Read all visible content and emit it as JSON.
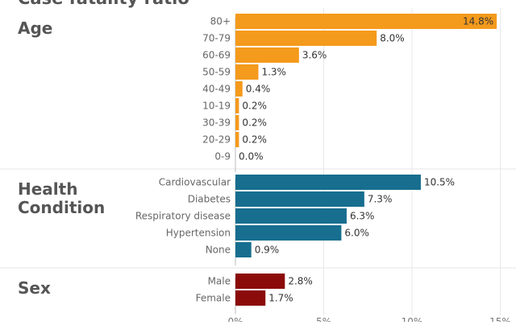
{
  "title": "Case fatality ratio",
  "chart_data": {
    "type": "bar",
    "orientation": "horizontal",
    "value_format": "percent",
    "xlim": [
      0,
      15
    ],
    "x_ticks": [
      "0%",
      "5%",
      "10%",
      "15%"
    ],
    "groups": [
      {
        "label": "Age",
        "color": "#f49a1c",
        "categories": [
          "80+",
          "70-79",
          "60-69",
          "50-59",
          "40-49",
          "10-19",
          "30-39",
          "20-29",
          "0-9"
        ],
        "values": [
          14.8,
          8.0,
          3.6,
          1.3,
          0.4,
          0.2,
          0.2,
          0.2,
          0.0
        ],
        "value_labels": [
          "14.8%",
          "8.0%",
          "3.6%",
          "1.3%",
          "0.4%",
          "0.2%",
          "0.2%",
          "0.2%",
          "0.0%"
        ]
      },
      {
        "label": "Health Condition",
        "label_lines": [
          "Health",
          "Condition"
        ],
        "color": "#176e8f",
        "categories": [
          "Cardiovascular",
          "Diabetes",
          "Respiratory disease",
          "Hypertension",
          "None"
        ],
        "values": [
          10.5,
          7.3,
          6.3,
          6.0,
          0.9
        ],
        "value_labels": [
          "10.5%",
          "7.3%",
          "6.3%",
          "6.0%",
          "0.9%"
        ]
      },
      {
        "label": "Sex",
        "color": "#8b0b0b",
        "categories": [
          "Male",
          "Female"
        ],
        "values": [
          2.8,
          1.7
        ],
        "value_labels": [
          "2.8%",
          "1.7%"
        ]
      }
    ]
  }
}
